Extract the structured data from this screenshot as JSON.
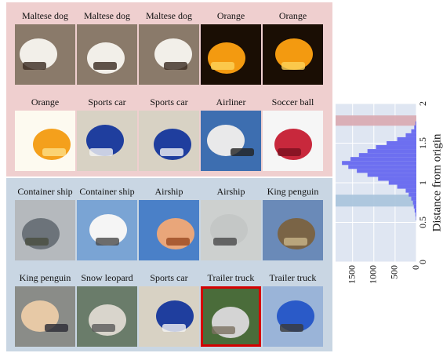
{
  "top_rows": [
    [
      {
        "label": "Maltese dog",
        "icon": "maltese-dog-photo"
      },
      {
        "label": "Maltese dog",
        "icon": "maltese-dog-photo"
      },
      {
        "label": "Maltese dog",
        "icon": "maltese-dog-photo"
      },
      {
        "label": "Orange",
        "icon": "orange-photo"
      },
      {
        "label": "Orange",
        "icon": "orange-photo"
      }
    ],
    [
      {
        "label": "Orange",
        "icon": "orange-slice-photo"
      },
      {
        "label": "Sports car",
        "icon": "sports-car-photo"
      },
      {
        "label": "Sports car",
        "icon": "sports-car-photo"
      },
      {
        "label": "Airliner",
        "icon": "airliner-photo"
      },
      {
        "label": "Soccer ball",
        "icon": "soccer-ball-photo"
      }
    ]
  ],
  "bottom_rows": [
    [
      {
        "label": "Container ship",
        "icon": "container-ship-photo"
      },
      {
        "label": "Container ship",
        "icon": "lighthouse-photo"
      },
      {
        "label": "Airship",
        "icon": "airship-photo"
      },
      {
        "label": "Airship",
        "icon": "sky-photo"
      },
      {
        "label": "King penguin",
        "icon": "rocks-photo"
      }
    ],
    [
      {
        "label": "King penguin",
        "icon": "penguin-crowd-photo"
      },
      {
        "label": "Snow leopard",
        "icon": "snow-leopard-photo"
      },
      {
        "label": "Sports car",
        "icon": "sports-car-photo"
      },
      {
        "label": "Trailer truck",
        "icon": "trailer-truck-photo",
        "highlighted": true
      },
      {
        "label": "Trailer truck",
        "icon": "truck-photo"
      }
    ]
  ],
  "colors": {
    "top_panel": "#efcfcf",
    "bottom_panel": "#c9d6e3",
    "histogram_bar": "#6d6ff0",
    "highlight_band_top": "#d9a8b0",
    "highlight_band_bottom": "#a9c3dc",
    "hist_background": "#dfe6f2",
    "highlight_border": "#d40000"
  },
  "chart_data": {
    "type": "bar",
    "orientation": "horizontal",
    "xlabel": "",
    "ylabel": "Distance from origin",
    "ylim": [
      0,
      2
    ],
    "xlim": [
      0,
      1900
    ],
    "y_ticks": [
      0,
      0.5,
      1,
      1.5,
      2
    ],
    "x_ticks": [
      0,
      500,
      1000,
      1500
    ],
    "y_tick_labels": [
      "0",
      "0.5",
      "1",
      "1.5",
      "2"
    ],
    "x_tick_labels": [
      "0",
      "500",
      "1000",
      "1500"
    ],
    "x_axis_reversed": true,
    "bin_width": 0.05,
    "bins": [
      {
        "y": 0.55,
        "count": 10
      },
      {
        "y": 0.6,
        "count": 20
      },
      {
        "y": 0.65,
        "count": 40
      },
      {
        "y": 0.7,
        "count": 60
      },
      {
        "y": 0.75,
        "count": 80
      },
      {
        "y": 0.8,
        "count": 120
      },
      {
        "y": 0.85,
        "count": 180
      },
      {
        "y": 0.9,
        "count": 250
      },
      {
        "y": 0.95,
        "count": 450
      },
      {
        "y": 1.0,
        "count": 650
      },
      {
        "y": 1.05,
        "count": 900
      },
      {
        "y": 1.1,
        "count": 1150
      },
      {
        "y": 1.15,
        "count": 1400
      },
      {
        "y": 1.2,
        "count": 1600
      },
      {
        "y": 1.25,
        "count": 1750
      },
      {
        "y": 1.3,
        "count": 1550
      },
      {
        "y": 1.35,
        "count": 1350
      },
      {
        "y": 1.4,
        "count": 1150
      },
      {
        "y": 1.45,
        "count": 950
      },
      {
        "y": 1.5,
        "count": 700
      },
      {
        "y": 1.55,
        "count": 450
      },
      {
        "y": 1.6,
        "count": 250
      },
      {
        "y": 1.65,
        "count": 120
      },
      {
        "y": 1.7,
        "count": 50
      },
      {
        "y": 1.75,
        "count": 20
      }
    ],
    "highlight_bands": [
      {
        "from": 1.72,
        "to": 1.85,
        "region": "top"
      },
      {
        "from": 0.7,
        "to": 0.85,
        "region": "bottom"
      }
    ],
    "grid": true,
    "legend": "none"
  }
}
